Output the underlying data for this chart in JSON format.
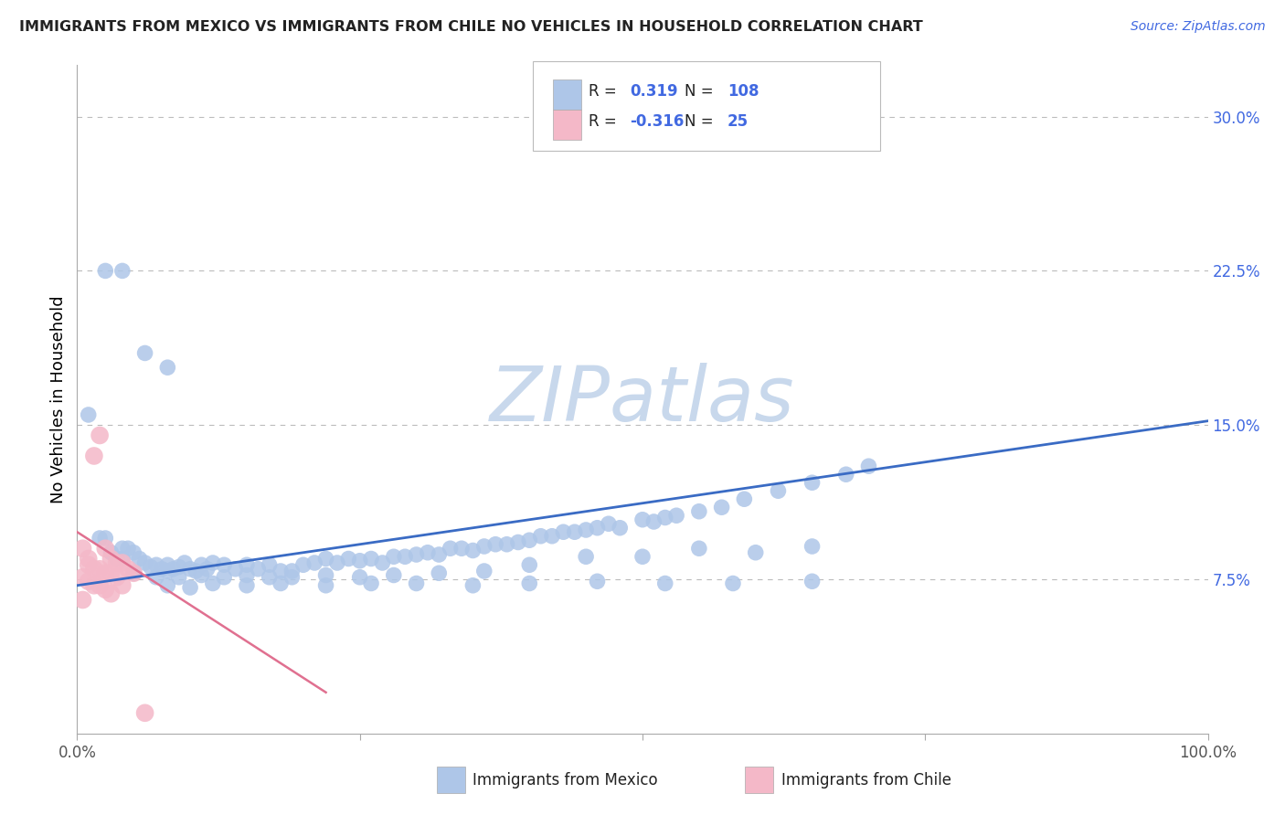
{
  "title": "IMMIGRANTS FROM MEXICO VS IMMIGRANTS FROM CHILE NO VEHICLES IN HOUSEHOLD CORRELATION CHART",
  "source_text": "Source: ZipAtlas.com",
  "ylabel": "No Vehicles in Household",
  "ytick_labels": [
    "7.5%",
    "15.0%",
    "22.5%",
    "30.0%"
  ],
  "ytick_values": [
    0.075,
    0.15,
    0.225,
    0.3
  ],
  "ymin": 0.0,
  "ymax": 0.325,
  "xmin": 0.0,
  "xmax": 1.0,
  "legend_r1": "0.319",
  "legend_n1": "108",
  "legend_r2": "-0.316",
  "legend_n2": "25",
  "color_mexico": "#AEC6E8",
  "color_chile": "#F4B8C8",
  "line_color_mexico": "#3A6BC4",
  "line_color_chile": "#E07090",
  "watermark": "ZIPatlas",
  "watermark_color": "#C8D8EC",
  "mexico_line_x": [
    0.0,
    1.0
  ],
  "mexico_line_y": [
    0.072,
    0.152
  ],
  "chile_line_x": [
    0.0,
    0.22
  ],
  "chile_line_y": [
    0.098,
    0.02
  ],
  "mexico_scatter_x": [
    0.01,
    0.02,
    0.025,
    0.03,
    0.035,
    0.04,
    0.04,
    0.045,
    0.05,
    0.055,
    0.06,
    0.065,
    0.07,
    0.075,
    0.08,
    0.08,
    0.085,
    0.09,
    0.095,
    0.1,
    0.105,
    0.11,
    0.115,
    0.12,
    0.13,
    0.14,
    0.15,
    0.16,
    0.17,
    0.18,
    0.19,
    0.2,
    0.21,
    0.22,
    0.23,
    0.24,
    0.25,
    0.26,
    0.27,
    0.28,
    0.29,
    0.3,
    0.31,
    0.32,
    0.33,
    0.34,
    0.35,
    0.36,
    0.37,
    0.38,
    0.39,
    0.4,
    0.41,
    0.42,
    0.43,
    0.44,
    0.45,
    0.46,
    0.47,
    0.48,
    0.5,
    0.51,
    0.52,
    0.53,
    0.55,
    0.57,
    0.59,
    0.62,
    0.65,
    0.68,
    0.7,
    0.05,
    0.07,
    0.09,
    0.11,
    0.13,
    0.15,
    0.17,
    0.19,
    0.22,
    0.25,
    0.28,
    0.32,
    0.36,
    0.4,
    0.45,
    0.5,
    0.55,
    0.6,
    0.65,
    0.08,
    0.1,
    0.12,
    0.15,
    0.18,
    0.22,
    0.26,
    0.3,
    0.35,
    0.4,
    0.46,
    0.52,
    0.58,
    0.65,
    0.025,
    0.04,
    0.06,
    0.08
  ],
  "mexico_scatter_y": [
    0.155,
    0.095,
    0.095,
    0.088,
    0.085,
    0.085,
    0.09,
    0.09,
    0.088,
    0.085,
    0.083,
    0.081,
    0.082,
    0.08,
    0.079,
    0.082,
    0.08,
    0.081,
    0.083,
    0.08,
    0.079,
    0.082,
    0.08,
    0.083,
    0.082,
    0.08,
    0.082,
    0.08,
    0.082,
    0.079,
    0.079,
    0.082,
    0.083,
    0.085,
    0.083,
    0.085,
    0.084,
    0.085,
    0.083,
    0.086,
    0.086,
    0.087,
    0.088,
    0.087,
    0.09,
    0.09,
    0.089,
    0.091,
    0.092,
    0.092,
    0.093,
    0.094,
    0.096,
    0.096,
    0.098,
    0.098,
    0.099,
    0.1,
    0.102,
    0.1,
    0.104,
    0.103,
    0.105,
    0.106,
    0.108,
    0.11,
    0.114,
    0.118,
    0.122,
    0.126,
    0.13,
    0.078,
    0.076,
    0.076,
    0.077,
    0.076,
    0.077,
    0.076,
    0.076,
    0.077,
    0.076,
    0.077,
    0.078,
    0.079,
    0.082,
    0.086,
    0.086,
    0.09,
    0.088,
    0.091,
    0.072,
    0.071,
    0.073,
    0.072,
    0.073,
    0.072,
    0.073,
    0.073,
    0.072,
    0.073,
    0.074,
    0.073,
    0.073,
    0.074,
    0.225,
    0.225,
    0.185,
    0.178
  ],
  "chile_scatter_x": [
    0.005,
    0.01,
    0.015,
    0.02,
    0.025,
    0.03,
    0.035,
    0.04,
    0.045,
    0.05,
    0.01,
    0.015,
    0.02,
    0.025,
    0.03,
    0.035,
    0.04,
    0.005,
    0.01,
    0.015,
    0.02,
    0.025,
    0.03,
    0.005,
    0.06
  ],
  "chile_scatter_y": [
    0.09,
    0.085,
    0.135,
    0.145,
    0.09,
    0.085,
    0.083,
    0.083,
    0.08,
    0.078,
    0.082,
    0.08,
    0.08,
    0.078,
    0.078,
    0.076,
    0.072,
    0.076,
    0.074,
    0.072,
    0.072,
    0.07,
    0.068,
    0.065,
    0.01
  ]
}
